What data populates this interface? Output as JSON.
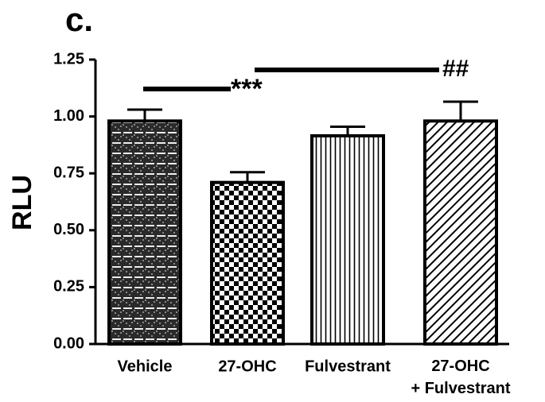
{
  "chart_data": {
    "type": "bar",
    "panel_label": "c.",
    "ylabel": "RLU",
    "categories": [
      "Vehicle",
      "27-OHC",
      "Fulvestrant",
      [
        "27-OHC",
        "+ Fulvestrant"
      ]
    ],
    "values": [
      0.98,
      0.71,
      0.915,
      0.98
    ],
    "errors": [
      0.05,
      0.045,
      0.04,
      0.085
    ],
    "color": "#000000",
    "ylim": [
      0,
      1.25
    ],
    "yticks": [
      {
        "value": 0,
        "label": "0.00"
      },
      0.25,
      {
        "value": 0.5,
        "label": "0.50"
      },
      0.75,
      {
        "value": 1,
        "label": "1.00"
      },
      {
        "value": 1.25,
        "label": "1.25"
      }
    ],
    "annotations": [
      "***",
      "##"
    ]
  }
}
